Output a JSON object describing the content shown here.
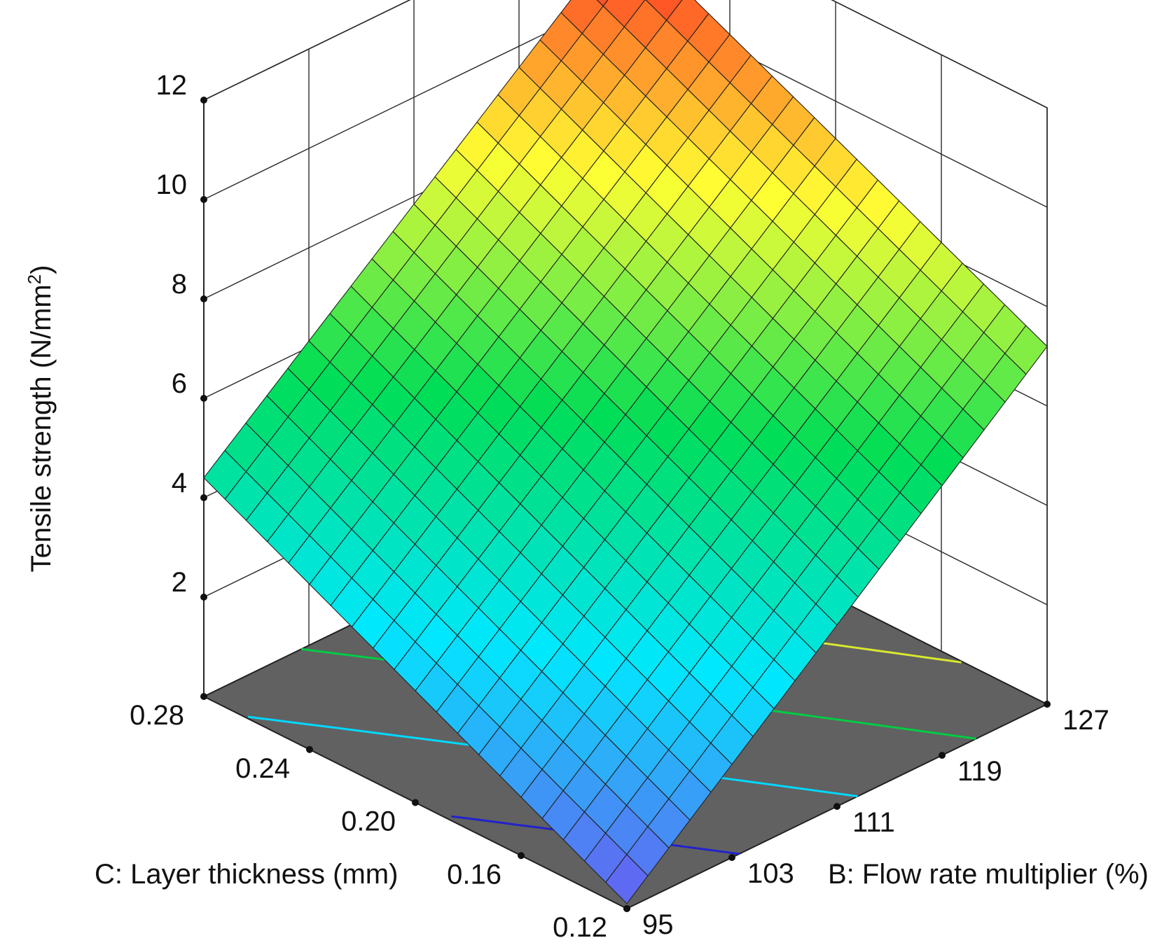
{
  "chart_data": {
    "type": "surface3d",
    "zlabel": "Tensile strength (N/mm",
    "zlabel_sup": "2",
    "zlabel_close": ")",
    "xlabel": "B: Flow rate multiplier (%)",
    "ylabel": "C: Layer thickness (mm)",
    "z_ticks": [
      "2",
      "4",
      "6",
      "8",
      "10",
      "12"
    ],
    "z_tick_values": [
      2,
      4,
      6,
      8,
      10,
      12
    ],
    "zlim": [
      0,
      12
    ],
    "x_ticks": [
      "95",
      "103",
      "111",
      "119",
      "127"
    ],
    "x_tick_values": [
      95,
      103,
      111,
      119,
      127
    ],
    "xlim": [
      95,
      127
    ],
    "y_ticks": [
      "0.12",
      "0.16",
      "0.20",
      "0.24",
      "0.28"
    ],
    "y_tick_values": [
      0.12,
      0.16,
      0.2,
      0.24,
      0.28
    ],
    "ylim": [
      0.12,
      0.28
    ],
    "corner_values": [
      {
        "x": 95,
        "y": 0.12,
        "z": 0.1
      },
      {
        "x": 95,
        "y": 0.28,
        "z": 4.4
      },
      {
        "x": 127,
        "y": 0.12,
        "z": 7.2
      },
      {
        "x": 127,
        "y": 0.28,
        "z": 11.3
      }
    ],
    "mesh_divisions": 20,
    "colormap": [
      "#6a5cf0",
      "#00e8ff",
      "#00dd55",
      "#ffff33",
      "#ff2222"
    ],
    "floor_color": "#616161",
    "contours": [
      {
        "level": 2,
        "color": "#2222cc"
      },
      {
        "level": 4,
        "color": "#00d8ff"
      },
      {
        "level": 6,
        "color": "#00cc44"
      },
      {
        "level": 8,
        "color": "#d8e830"
      },
      {
        "level": 10,
        "color": "#ff5522"
      }
    ],
    "grid": true
  }
}
